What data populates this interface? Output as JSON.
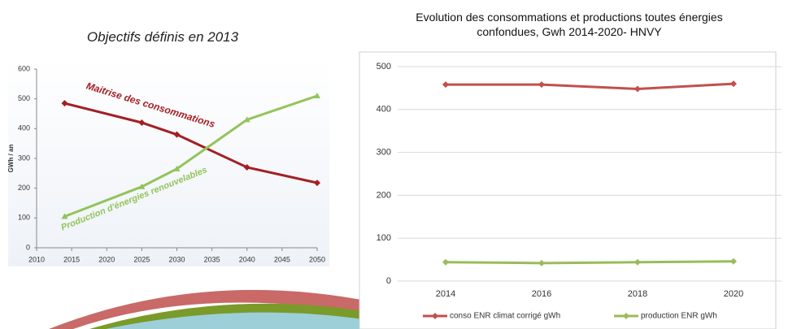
{
  "chart_data": [
    {
      "type": "line",
      "title": "Objectifs définis en 2013",
      "y_label": "GWh / an",
      "x": [
        2014,
        2025,
        2030,
        2040,
        2050
      ],
      "xlim": [
        2010,
        2050
      ],
      "xticks": [
        2010,
        2015,
        2020,
        2025,
        2030,
        2035,
        2040,
        2045,
        2050
      ],
      "ylim": [
        0,
        600
      ],
      "yticks": [
        0,
        100,
        200,
        300,
        400,
        500,
        600
      ],
      "grid": false,
      "series": [
        {
          "name": "Maitrise des consommations",
          "color": "#a31f24",
          "values": [
            485,
            420,
            380,
            270,
            218
          ]
        },
        {
          "name": "Production d'énergies renouvelables",
          "color": "#92c45a",
          "values": [
            105,
            205,
            265,
            430,
            510
          ]
        }
      ]
    },
    {
      "type": "line",
      "title": "Evolution des consommations et productions toutes énergies confondues, Gwh 2014-2020- HNVY",
      "categories": [
        "2014",
        "2016",
        "2018",
        "2020"
      ],
      "ylim": [
        0,
        500
      ],
      "yticks": [
        0,
        100,
        200,
        300,
        400,
        500
      ],
      "grid": true,
      "legend": "bottom",
      "series": [
        {
          "name": "conso ENR climat corrigé gWh",
          "color": "#c0504d",
          "values": [
            458,
            458,
            448,
            460
          ]
        },
        {
          "name": "production ENR gWh",
          "color": "#9bbb59",
          "values": [
            44,
            42,
            44,
            46
          ]
        }
      ]
    }
  ]
}
